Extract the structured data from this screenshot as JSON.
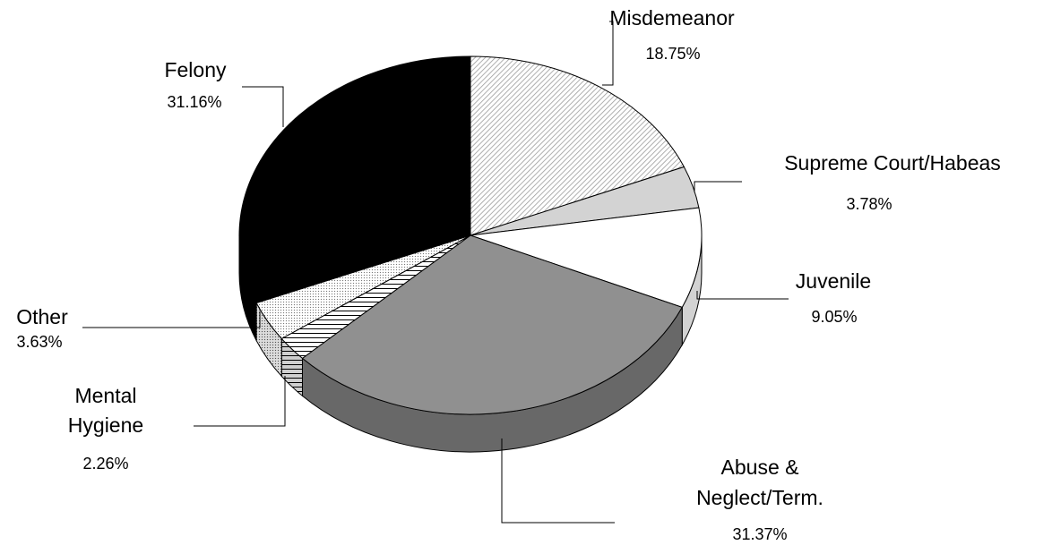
{
  "chart_data": {
    "type": "pie",
    "style": "3d-exploded-tilt",
    "slices": [
      {
        "name": "Misdemeanor",
        "label_lines": [
          "Misdemeanor"
        ],
        "value": 18.75,
        "pct_label": "18.75%",
        "fill": "hatch-diagonal"
      },
      {
        "name": "Supreme Court/Habeas",
        "label_lines": [
          "Supreme Court/Habeas"
        ],
        "value": 3.78,
        "pct_label": "3.78%",
        "fill": "#d3d3d3"
      },
      {
        "name": "Juvenile",
        "label_lines": [
          "Juvenile"
        ],
        "value": 9.05,
        "pct_label": "9.05%",
        "fill": "#ffffff"
      },
      {
        "name": "Abuse & Neglect/Term.",
        "label_lines": [
          "Abuse &",
          "Neglect/Term."
        ],
        "value": 31.37,
        "pct_label": "31.37%",
        "fill": "#909090"
      },
      {
        "name": "Mental Hygiene",
        "label_lines": [
          "Mental",
          "Hygiene"
        ],
        "value": 2.26,
        "pct_label": "2.26%",
        "fill": "hatch-horizontal"
      },
      {
        "name": "Other",
        "label_lines": [
          "Other"
        ],
        "value": 3.63,
        "pct_label": "3.63%",
        "fill": "dots"
      },
      {
        "name": "Felony",
        "label_lines": [
          "Felony"
        ],
        "value": 31.16,
        "pct_label": "31.16%",
        "fill": "#000000"
      }
    ],
    "start_angle_deg": -90,
    "direction": "clockwise",
    "legend": "none",
    "labels": "outside-with-leader-lines"
  }
}
